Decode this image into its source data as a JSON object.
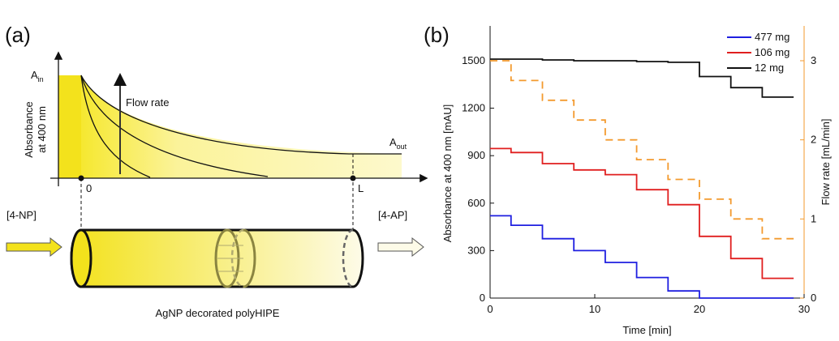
{
  "panel_a": {
    "label": "(a)",
    "y_label": [
      "Absorbance",
      "at 400 nm"
    ],
    "a_in": {
      "base": "A",
      "sub": "in"
    },
    "a_out": {
      "base": "A",
      "sub": "out"
    },
    "flow_rate": "Flow rate",
    "origin": "0",
    "length": "L",
    "inlet": "[4-NP]",
    "outlet": "[4-AP]",
    "caption": "AgNP decorated polyHIPE"
  },
  "chart_data": {
    "type": "line",
    "label": "(b)",
    "xlabel": "Time [min]",
    "ylabel": "Absorbance at 400 nm [mAU]",
    "y2label": "Flow rate [mL/min]",
    "y2color": "#f39a2e",
    "xlim": [
      0,
      30
    ],
    "xticks": [
      0,
      10,
      20,
      30
    ],
    "ylim": [
      0,
      1720
    ],
    "yticks": [
      0,
      300,
      600,
      900,
      1200,
      1500
    ],
    "y2lim": [
      0,
      3.44
    ],
    "y2ticks": [
      0,
      1,
      2,
      3
    ],
    "legend": "top-right",
    "x": [
      0,
      2,
      2,
      5,
      5,
      8,
      8,
      11,
      11,
      14,
      14,
      17,
      17,
      20,
      20,
      23,
      23,
      26,
      26,
      29
    ],
    "series": [
      {
        "name": "477 mg",
        "color": "#1f1fe0",
        "values": [
          520,
          520,
          460,
          460,
          375,
          375,
          300,
          300,
          225,
          225,
          130,
          130,
          45,
          45,
          0,
          0,
          0,
          0,
          0,
          0
        ]
      },
      {
        "name": "106 mg",
        "color": "#e01f1f",
        "values": [
          945,
          945,
          920,
          920,
          850,
          850,
          810,
          810,
          780,
          780,
          685,
          685,
          590,
          590,
          390,
          390,
          250,
          250,
          125,
          125
        ]
      },
      {
        "name": "12 mg",
        "color": "#111111",
        "values": [
          1510,
          1510,
          1510,
          1510,
          1505,
          1505,
          1500,
          1500,
          1500,
          1500,
          1495,
          1495,
          1490,
          1490,
          1400,
          1400,
          1330,
          1330,
          1270,
          1270
        ]
      },
      {
        "color": "#f39a2e",
        "axis": "y2",
        "dashed": true,
        "values": [
          3,
          3,
          2.75,
          2.75,
          2.5,
          2.5,
          2.25,
          2.25,
          2,
          2,
          1.75,
          1.75,
          1.5,
          1.5,
          1.25,
          1.25,
          1,
          1,
          0.75,
          0.75
        ]
      }
    ]
  }
}
